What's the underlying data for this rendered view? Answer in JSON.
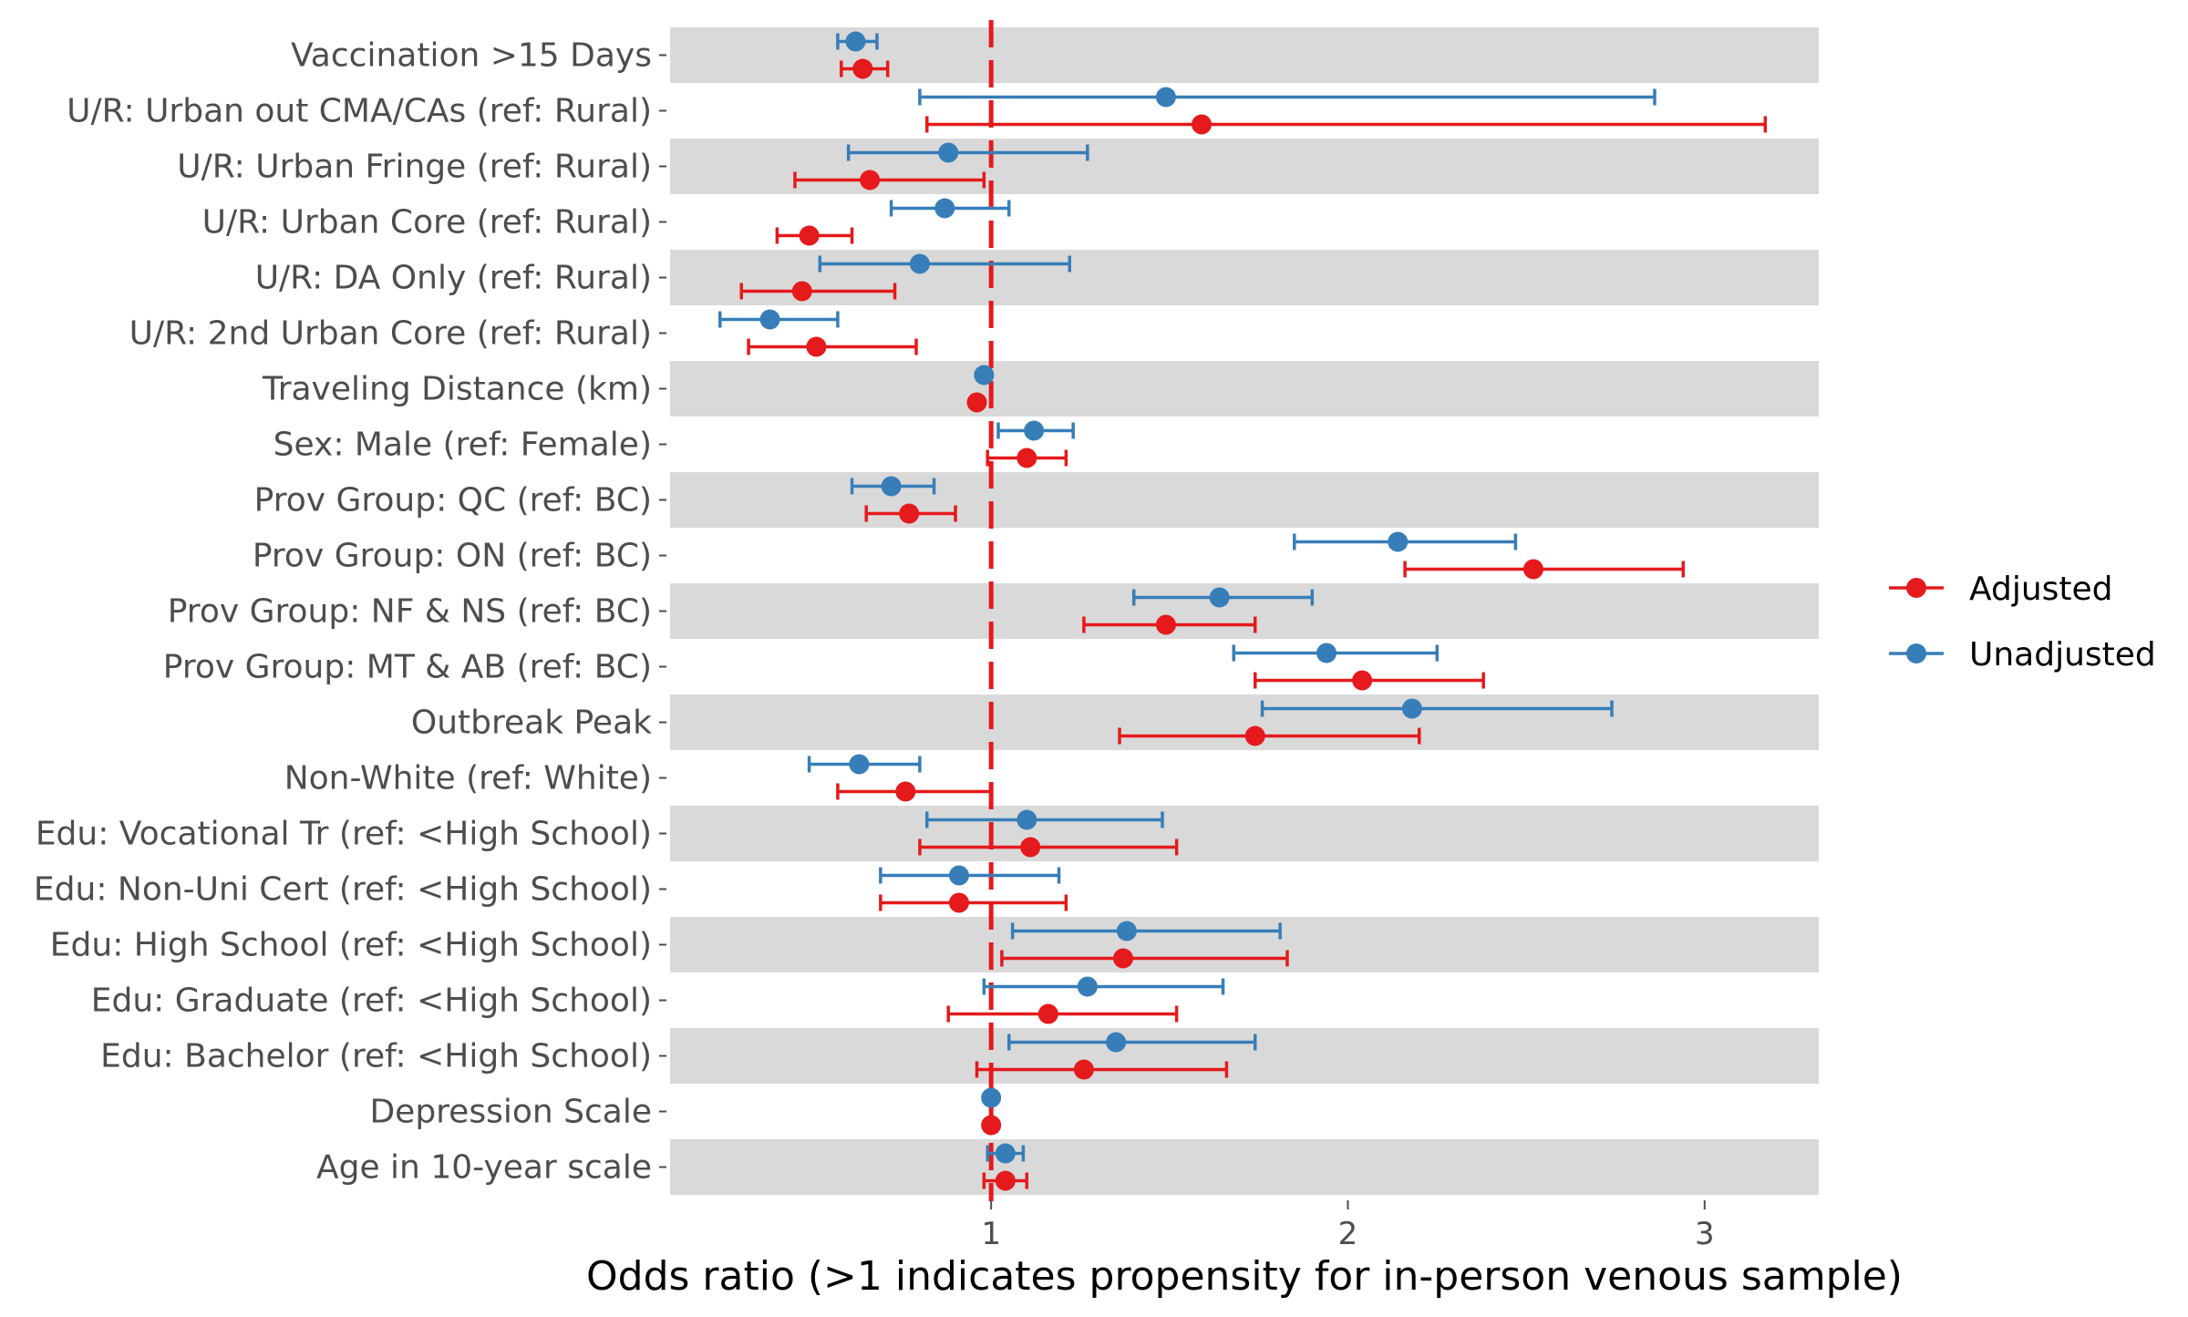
{
  "chart_data": {
    "type": "forest",
    "xlabel": "Odds ratio (>1 indicates propensity for in-person venous sample)",
    "ylabel": "",
    "title": "",
    "x_ticks": [
      1,
      2,
      3
    ],
    "xlim": [
      0.1,
      3.32
    ],
    "reference_line": 1,
    "legend": {
      "position": "right",
      "entries": [
        "Adjusted",
        "Unadjusted"
      ]
    },
    "colors": {
      "Adjusted": "#e41a1c",
      "Unadjusted": "#377eb8",
      "reference": "#e41a1c",
      "band": "#d9d9d9"
    },
    "categories": [
      "Vaccination >15 Days",
      "U/R: Urban out CMA/CAs (ref: Rural)",
      "U/R: Urban Fringe (ref: Rural)",
      "U/R: Urban Core (ref: Rural)",
      "U/R: DA Only (ref: Rural)",
      "U/R: 2nd Urban Core (ref: Rural)",
      "Traveling Distance (km)",
      "Sex: Male (ref: Female)",
      "Prov Group: QC (ref: BC)",
      "Prov Group: ON (ref: BC)",
      "Prov Group: NF & NS (ref: BC)",
      "Prov Group: MT & AB (ref: BC)",
      "Outbreak Peak",
      "Non-White (ref: White)",
      "Edu: Vocational Tr (ref: <High School)",
      "Edu: Non-Uni Cert (ref: <High School)",
      "Edu: High School (ref: <High School)",
      "Edu: Graduate (ref: <High School)",
      "Edu: Bachelor (ref: <High School)",
      "Depression Scale",
      "Age in 10-year scale"
    ],
    "series": [
      {
        "name": "Unadjusted",
        "estimate": [
          0.62,
          1.49,
          0.88,
          0.87,
          0.8,
          0.38,
          0.98,
          1.12,
          0.72,
          2.14,
          1.64,
          1.94,
          2.18,
          0.63,
          1.1,
          0.91,
          1.38,
          1.27,
          1.35,
          1.0,
          1.04
        ],
        "lower": [
          0.57,
          0.8,
          0.6,
          0.72,
          0.52,
          0.24,
          0.98,
          1.02,
          0.61,
          1.85,
          1.4,
          1.68,
          1.76,
          0.49,
          0.82,
          0.69,
          1.06,
          0.98,
          1.05,
          1.0,
          0.99
        ],
        "upper": [
          0.68,
          2.86,
          1.27,
          1.05,
          1.22,
          0.57,
          0.98,
          1.23,
          0.84,
          2.47,
          1.9,
          2.25,
          2.74,
          0.8,
          1.48,
          1.19,
          1.81,
          1.65,
          1.74,
          1.0,
          1.09
        ]
      },
      {
        "name": "Adjusted",
        "estimate": [
          0.64,
          1.59,
          0.66,
          0.49,
          0.47,
          0.51,
          0.96,
          1.1,
          0.77,
          2.52,
          1.49,
          2.04,
          1.74,
          0.76,
          1.11,
          0.91,
          1.37,
          1.16,
          1.26,
          1.0,
          1.04
        ],
        "lower": [
          0.58,
          0.82,
          0.45,
          0.4,
          0.3,
          0.32,
          0.96,
          0.99,
          0.65,
          2.16,
          1.26,
          1.74,
          1.36,
          0.57,
          0.8,
          0.69,
          1.03,
          0.88,
          0.96,
          1.0,
          0.98
        ],
        "upper": [
          0.71,
          3.17,
          0.98,
          0.61,
          0.73,
          0.79,
          0.96,
          1.21,
          0.9,
          2.94,
          1.74,
          2.38,
          2.2,
          1.0,
          1.52,
          1.21,
          1.83,
          1.52,
          1.66,
          1.0,
          1.1
        ]
      }
    ]
  }
}
